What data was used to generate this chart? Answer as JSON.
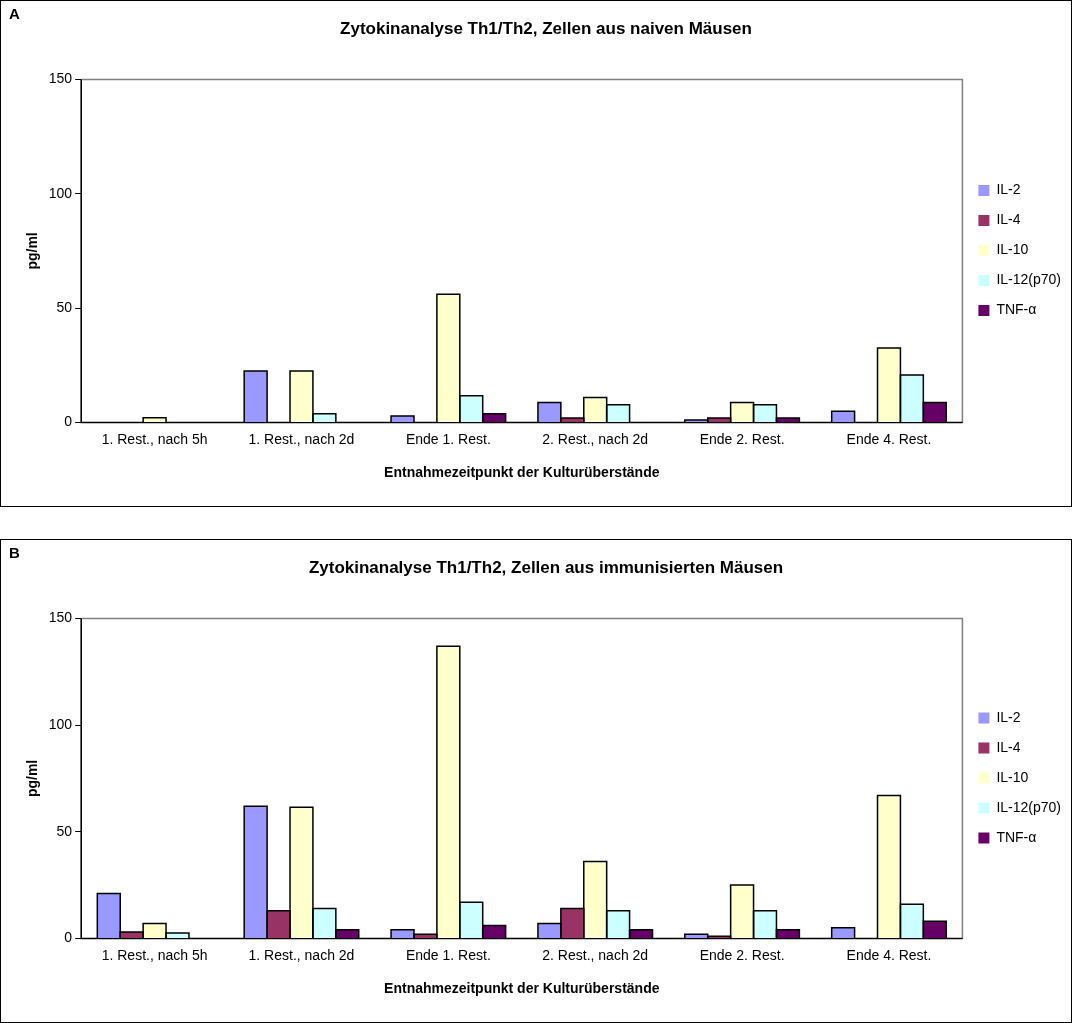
{
  "chart_data": [
    {
      "type": "bar",
      "title": "Zytokinanalyse Th1/Th2, Zellen aus naiven Mäusen",
      "xlabel": "Entnahmezeitpunkt der Kulturüberstände",
      "ylabel": "pg/ml",
      "annotations": [
        "A"
      ],
      "categories": [
        "1. Rest., nach 5h",
        "1. Rest., nach 2d",
        "Ende 1. Rest.",
        "2. Rest., nach 2d",
        "Ende 2. Rest.",
        "Ende 4. Rest."
      ],
      "series": [
        {
          "name": "IL-2",
          "color": "#9999ff",
          "values": [
            null,
            22.5,
            2.8,
            8.7,
            1,
            4.9
          ]
        },
        {
          "name": "IL-4",
          "color": "#993366",
          "values": [
            null,
            null,
            null,
            1.9,
            1.9,
            null
          ]
        },
        {
          "name": "IL-10",
          "color": "#ffffcc",
          "values": [
            2,
            22.5,
            56,
            10.9,
            8.7,
            32.5
          ]
        },
        {
          "name": "IL-12(p70)",
          "color": "#ccffff",
          "values": [
            null,
            3.8,
            11.7,
            7.7,
            7.7,
            20.7
          ]
        },
        {
          "name": "TNF-α",
          "color": "#660066",
          "values": [
            null,
            null,
            3.8,
            null,
            1.9,
            8.7
          ]
        }
      ],
      "ylim": [
        0,
        150
      ],
      "yticks": [
        0,
        50,
        100,
        150
      ],
      "grid": false,
      "legend": "right"
    },
    {
      "type": "bar",
      "title": "Zytokinanalyse Th1/Th2, Zellen aus immunisierten Mäusen",
      "xlabel": "Entnahmezeitpunkt der Kulturüberstände",
      "ylabel": "pg/ml",
      "annotations": [
        "B"
      ],
      "categories": [
        "1. Rest., nach 5h",
        "1. Rest., nach 2d",
        "Ende 1. Rest.",
        "2. Rest., nach 2d",
        "Ende 2. Rest.",
        "Ende 4. Rest."
      ],
      "series": [
        {
          "name": "IL-2",
          "color": "#9999ff",
          "values": [
            21,
            62,
            4,
            7,
            2,
            5
          ]
        },
        {
          "name": "IL-4",
          "color": "#993366",
          "values": [
            3,
            13,
            2,
            14,
            1,
            null
          ]
        },
        {
          "name": "IL-10",
          "color": "#ffffcc",
          "values": [
            7,
            61.5,
            137,
            36,
            25,
            67
          ]
        },
        {
          "name": "IL-12(p70)",
          "color": "#ccffff",
          "values": [
            2.5,
            14,
            17,
            13,
            13,
            16
          ]
        },
        {
          "name": "TNF-α",
          "color": "#660066",
          "values": [
            null,
            4,
            6,
            4,
            4,
            8
          ]
        }
      ],
      "ylim": [
        0,
        150
      ],
      "yticks": [
        0,
        50,
        100,
        150
      ],
      "grid": false,
      "legend": "right"
    }
  ]
}
